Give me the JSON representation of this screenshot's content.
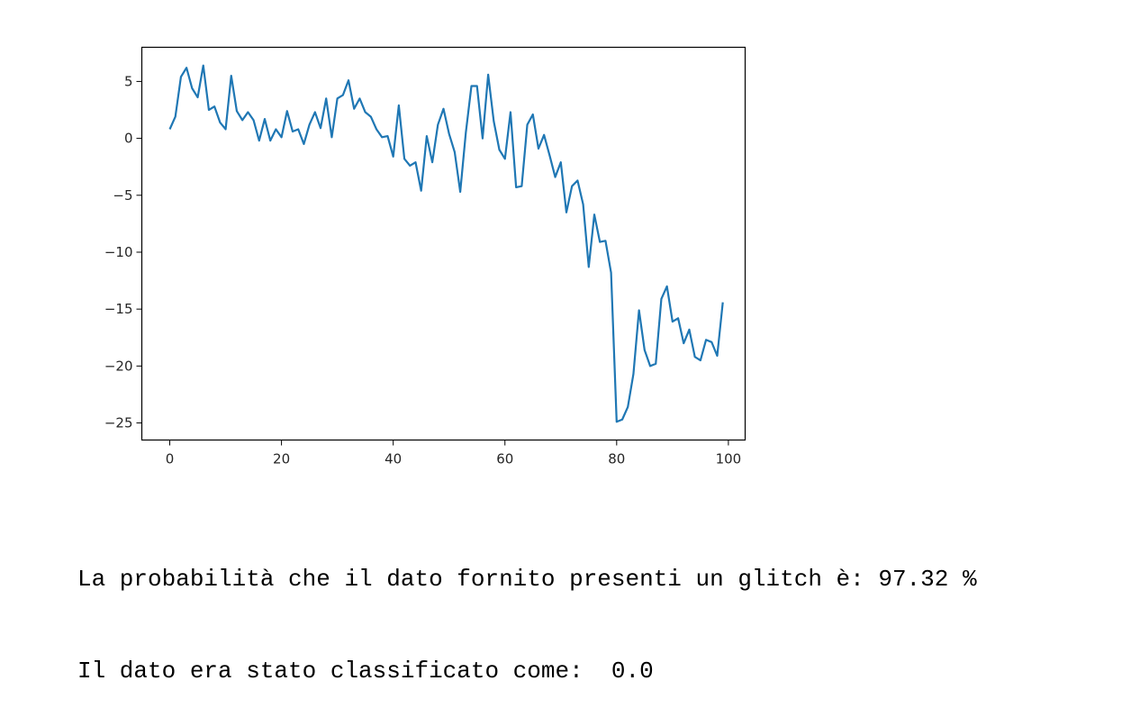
{
  "chart_data": {
    "type": "line",
    "title": "",
    "xlabel": "",
    "ylabel": "",
    "xlim": [
      -5,
      103
    ],
    "ylim": [
      -26.5,
      8
    ],
    "x_ticks": [
      0,
      20,
      40,
      60,
      80,
      100
    ],
    "y_ticks": [
      5,
      0,
      -5,
      -10,
      -15,
      -20,
      -25
    ],
    "x_tick_labels": [
      "0",
      "20",
      "40",
      "60",
      "80",
      "100"
    ],
    "y_tick_labels": [
      "5",
      "0",
      "−5",
      "−10",
      "−15",
      "−20",
      "−25"
    ],
    "grid": false,
    "series": [
      {
        "color": "#1f77b4",
        "x": [
          0,
          1,
          2,
          3,
          4,
          5,
          6,
          7,
          8,
          9,
          10,
          11,
          12,
          13,
          14,
          15,
          16,
          17,
          18,
          19,
          20,
          21,
          22,
          23,
          24,
          25,
          26,
          27,
          28,
          29,
          30,
          31,
          32,
          33,
          34,
          35,
          36,
          37,
          38,
          39,
          40,
          41,
          42,
          43,
          44,
          45,
          46,
          47,
          48,
          49,
          50,
          51,
          52,
          53,
          54,
          55,
          56,
          57,
          58,
          59,
          60,
          61,
          62,
          63,
          64,
          65,
          66,
          67,
          68,
          69,
          70,
          71,
          72,
          73,
          74,
          75,
          76,
          77,
          78,
          79,
          80,
          81,
          82,
          83,
          84,
          85,
          86,
          87,
          88,
          89,
          90,
          91,
          92,
          93,
          94,
          95,
          96,
          97,
          98,
          99
        ],
        "y": [
          0.8,
          1.9,
          5.4,
          6.2,
          4.4,
          3.6,
          6.4,
          2.5,
          2.8,
          1.4,
          0.8,
          5.5,
          2.4,
          1.6,
          2.3,
          1.6,
          -0.2,
          1.7,
          -0.2,
          0.8,
          0.1,
          2.4,
          0.6,
          0.8,
          -0.5,
          1.2,
          2.3,
          0.9,
          3.5,
          0.1,
          3.5,
          3.8,
          5.1,
          2.6,
          3.5,
          2.3,
          1.9,
          0.8,
          0.1,
          0.2,
          -1.6,
          2.9,
          -1.8,
          -2.4,
          -2.1,
          -4.6,
          0.2,
          -2.1,
          1.2,
          2.6,
          0.4,
          -1.2,
          -4.7,
          0.5,
          4.6,
          4.6,
          0.0,
          5.6,
          1.5,
          -1.0,
          -1.8,
          2.3,
          -4.3,
          -4.2,
          1.2,
          2.1,
          -0.9,
          0.3,
          -1.5,
          -3.4,
          -2.1,
          -6.5,
          -4.2,
          -3.7,
          -5.8,
          -11.3,
          -6.7,
          -9.1,
          -9.0,
          -11.8,
          -24.9,
          -24.7,
          -23.6,
          -20.7,
          -15.1,
          -18.6,
          -20.0,
          -19.8,
          -14.1,
          -13.0,
          -16.1,
          -15.8,
          -18.0,
          -16.8,
          -19.2,
          -19.5,
          -17.7,
          -17.9,
          -19.1,
          -14.4
        ]
      }
    ]
  },
  "output": {
    "line1": "La probabilità che il dato fornito presenti un glitch è: 97.32 %",
    "line2": "Il dato era stato classificato come:  0.0"
  }
}
